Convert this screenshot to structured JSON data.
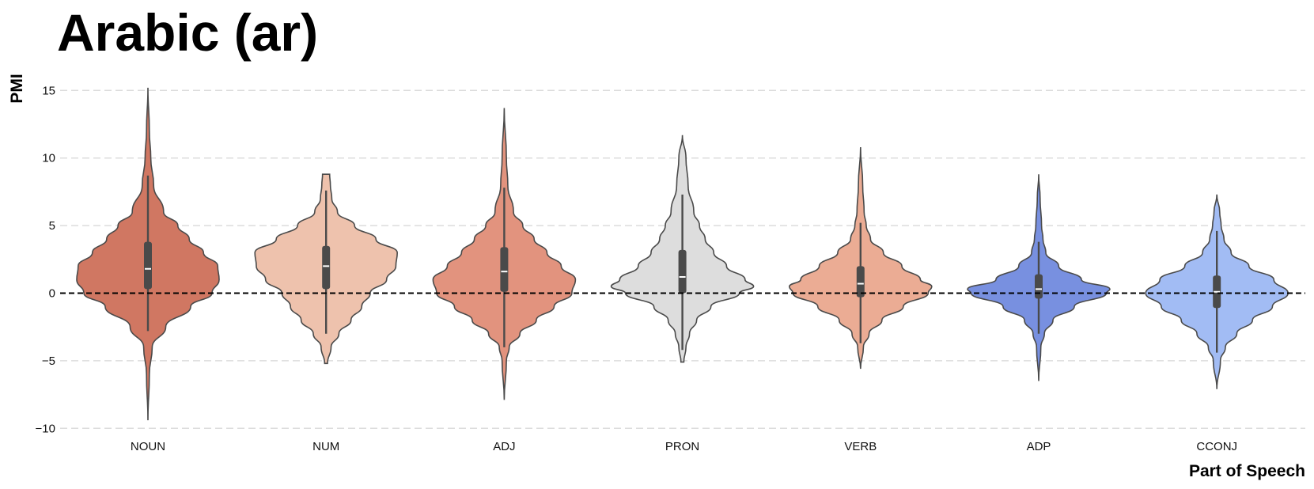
{
  "chart_data": {
    "type": "violin",
    "title": "Arabic (ar)",
    "xlabel": "Part of Speech",
    "ylabel": "PMI",
    "ylim": [
      -10,
      15
    ],
    "yticks": [
      -10,
      -5,
      0,
      5,
      10,
      15
    ],
    "grid": true,
    "reference_line": 0,
    "categories": [
      "NOUN",
      "NUM",
      "ADJ",
      "PRON",
      "VERB",
      "ADP",
      "CCONJ"
    ],
    "colors": [
      "#d07762",
      "#eec2ad",
      "#e2937e",
      "#dddddd",
      "#ebac94",
      "#7890e0",
      "#a2bcf4"
    ],
    "series": [
      {
        "category": "NOUN",
        "min": -9.4,
        "max": 15.2,
        "whisker_low": -2.8,
        "whisker_high": 8.7,
        "q1": 0.3,
        "median": 1.8,
        "q3": 3.8,
        "width_profile": [
          [
            -9.4,
            0.0
          ],
          [
            -6,
            0.02
          ],
          [
            -4,
            0.06
          ],
          [
            -2.5,
            0.25
          ],
          [
            -1,
            0.6
          ],
          [
            0,
            0.9
          ],
          [
            1,
            1.0
          ],
          [
            2,
            0.98
          ],
          [
            3,
            0.78
          ],
          [
            4,
            0.58
          ],
          [
            5,
            0.42
          ],
          [
            6,
            0.22
          ],
          [
            8,
            0.08
          ],
          [
            10,
            0.04
          ],
          [
            12,
            0.02
          ],
          [
            15.2,
            0.0
          ]
        ]
      },
      {
        "category": "NUM",
        "min": -5.2,
        "max": 8.8,
        "whisker_low": -3.0,
        "whisker_high": 7.6,
        "q1": 0.3,
        "median": 2.0,
        "q3": 3.5,
        "width_profile": [
          [
            -5.2,
            0.02
          ],
          [
            -4,
            0.07
          ],
          [
            -3,
            0.18
          ],
          [
            -2,
            0.35
          ],
          [
            -1,
            0.5
          ],
          [
            0,
            0.62
          ],
          [
            1,
            0.85
          ],
          [
            2,
            0.98
          ],
          [
            3,
            1.0
          ],
          [
            4,
            0.7
          ],
          [
            5,
            0.4
          ],
          [
            6,
            0.16
          ],
          [
            7,
            0.08
          ],
          [
            8,
            0.06
          ],
          [
            8.8,
            0.05
          ]
        ]
      },
      {
        "category": "ADJ",
        "min": -7.9,
        "max": 13.7,
        "whisker_low": -4.0,
        "whisker_high": 7.8,
        "q1": 0.1,
        "median": 1.6,
        "q3": 3.4,
        "width_profile": [
          [
            -7.9,
            0.0
          ],
          [
            -5,
            0.03
          ],
          [
            -4,
            0.07
          ],
          [
            -3,
            0.22
          ],
          [
            -2,
            0.45
          ],
          [
            -1,
            0.7
          ],
          [
            0,
            0.95
          ],
          [
            1,
            1.0
          ],
          [
            2,
            0.8
          ],
          [
            3,
            0.6
          ],
          [
            4,
            0.42
          ],
          [
            5,
            0.26
          ],
          [
            6,
            0.13
          ],
          [
            8,
            0.05
          ],
          [
            10,
            0.03
          ],
          [
            13.7,
            0.0
          ]
        ]
      },
      {
        "category": "PRON",
        "min": -5.1,
        "max": 11.7,
        "whisker_low": -4.2,
        "whisker_high": 7.3,
        "q1": 0.0,
        "median": 1.2,
        "q3": 3.2,
        "width_profile": [
          [
            -5.1,
            0.02
          ],
          [
            -4,
            0.05
          ],
          [
            -3,
            0.1
          ],
          [
            -2,
            0.2
          ],
          [
            -1,
            0.4
          ],
          [
            0,
            0.8
          ],
          [
            0.5,
            1.0
          ],
          [
            1,
            0.88
          ],
          [
            2,
            0.62
          ],
          [
            3,
            0.44
          ],
          [
            4,
            0.32
          ],
          [
            5,
            0.24
          ],
          [
            6,
            0.16
          ],
          [
            8,
            0.08
          ],
          [
            10,
            0.05
          ],
          [
            11.7,
            0.0
          ]
        ]
      },
      {
        "category": "VERB",
        "min": -5.6,
        "max": 10.8,
        "whisker_low": -3.7,
        "whisker_high": 5.2,
        "q1": -0.3,
        "median": 0.7,
        "q3": 2.0,
        "width_profile": [
          [
            -5.6,
            0.0
          ],
          [
            -4,
            0.04
          ],
          [
            -3,
            0.12
          ],
          [
            -2,
            0.3
          ],
          [
            -1,
            0.6
          ],
          [
            0,
            0.95
          ],
          [
            0.5,
            1.0
          ],
          [
            1,
            0.84
          ],
          [
            2,
            0.58
          ],
          [
            3,
            0.32
          ],
          [
            4,
            0.14
          ],
          [
            5,
            0.08
          ],
          [
            6,
            0.05
          ],
          [
            8,
            0.03
          ],
          [
            10.8,
            0.0
          ]
        ]
      },
      {
        "category": "ADP",
        "min": -6.5,
        "max": 8.8,
        "whisker_low": -3.0,
        "whisker_high": 3.8,
        "q1": -0.4,
        "median": 0.3,
        "q3": 1.4,
        "width_profile": [
          [
            -6.5,
            0.0
          ],
          [
            -4,
            0.03
          ],
          [
            -3,
            0.08
          ],
          [
            -2,
            0.2
          ],
          [
            -1,
            0.5
          ],
          [
            0,
            0.95
          ],
          [
            0.3,
            1.0
          ],
          [
            1,
            0.6
          ],
          [
            2,
            0.28
          ],
          [
            3,
            0.1
          ],
          [
            4,
            0.06
          ],
          [
            5,
            0.04
          ],
          [
            7,
            0.02
          ],
          [
            8.8,
            0.0
          ]
        ]
      },
      {
        "category": "CCONJ",
        "min": -7.1,
        "max": 7.3,
        "whisker_low": -4.4,
        "whisker_high": 4.6,
        "q1": -1.1,
        "median": 0.1,
        "q3": 1.3,
        "width_profile": [
          [
            -7.1,
            0.0
          ],
          [
            -5,
            0.05
          ],
          [
            -4,
            0.12
          ],
          [
            -3,
            0.28
          ],
          [
            -2,
            0.5
          ],
          [
            -1,
            0.78
          ],
          [
            0,
            1.0
          ],
          [
            1,
            0.8
          ],
          [
            2,
            0.45
          ],
          [
            3,
            0.2
          ],
          [
            4,
            0.1
          ],
          [
            5,
            0.06
          ],
          [
            6,
            0.04
          ],
          [
            7.3,
            0.0
          ]
        ]
      }
    ]
  }
}
